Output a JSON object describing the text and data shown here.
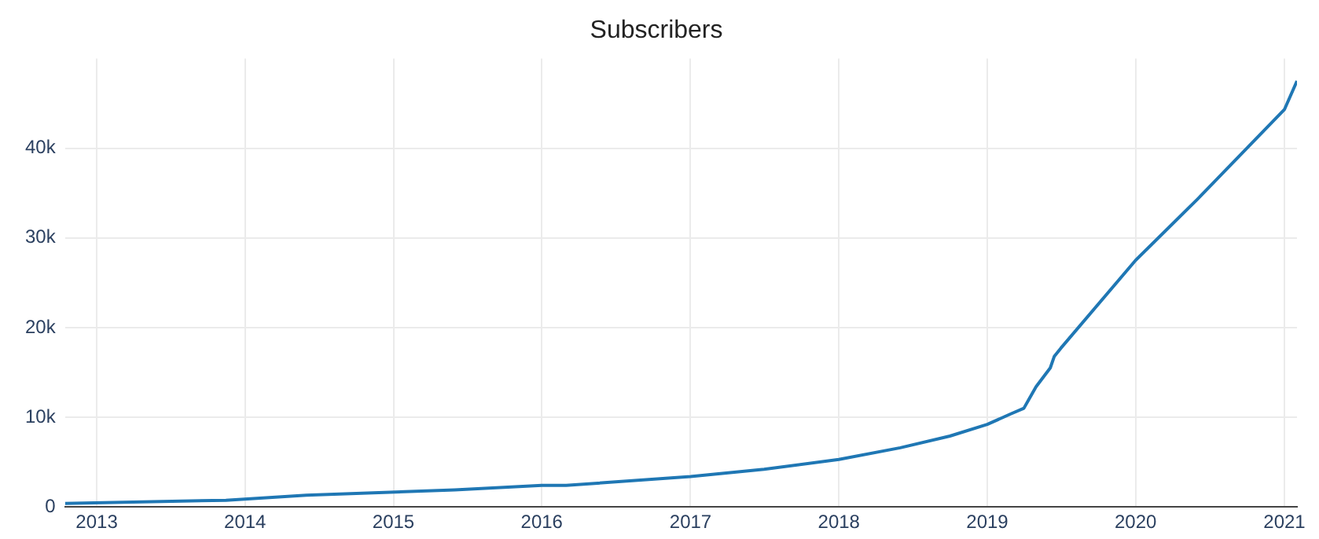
{
  "chart_data": {
    "type": "line",
    "title": "Subscribers",
    "x": [
      "2012-10-15",
      "2013-11-15",
      "2014-06-01",
      "2015-06-01",
      "2016-01-01",
      "2016-03-01",
      "2017-01-01",
      "2017-07-01",
      "2018-01-01",
      "2018-06-01",
      "2018-10-01",
      "2019-01-01",
      "2019-03-01",
      "2019-04-01",
      "2019-05-01",
      "2019-06-05",
      "2019-06-15",
      "2019-07-01",
      "2020-01-01",
      "2020-06-01",
      "2021-01-01",
      "2021-02-01"
    ],
    "series": [
      {
        "color": "#1f77b4",
        "values": [
          400,
          750,
          1300,
          1900,
          2400,
          2400,
          3400,
          4200,
          5300,
          6600,
          7900,
          9200,
          10400,
          11000,
          13400,
          15500,
          16800,
          17700,
          27500,
          34300,
          44300,
          47500
        ]
      }
    ],
    "xlim": [
      "2012-10-15",
      "2021-02-01"
    ],
    "xticks": [
      "2013",
      "2014",
      "2015",
      "2016",
      "2017",
      "2018",
      "2019",
      "2020",
      "2021"
    ],
    "ylim": [
      0,
      50000
    ],
    "yticks": [
      {
        "value": 0,
        "label": "0"
      },
      {
        "value": 10000,
        "label": "10k"
      },
      {
        "value": 20000,
        "label": "20k"
      },
      {
        "value": 30000,
        "label": "30k"
      },
      {
        "value": 40000,
        "label": "40k"
      }
    ],
    "grid": true,
    "legend": false
  }
}
